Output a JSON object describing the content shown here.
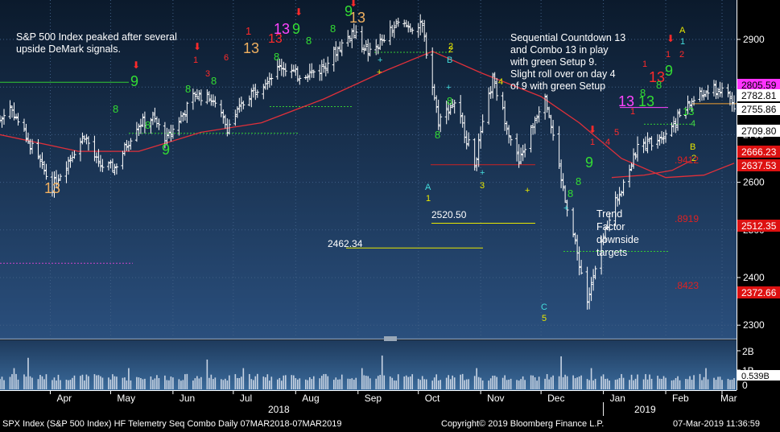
{
  "colors": {
    "background_top": "#0b1a2c",
    "background_bottom": "#2a4f7d",
    "price_bars": "#ffffff",
    "moving_average": "#e0303a",
    "buy_setup": "#33dd33",
    "sell_setup": "#ff2a2a",
    "countdown_13_sell": "#ff44ff",
    "countdown_13_tan": "#f0b060",
    "target_line": "#e8e800",
    "tdst_green": "#33cc33",
    "tdst_red": "#cc2222",
    "label_current": "#ffffff",
    "label_magenta": "#ff33ff",
    "label_red": "#dd1111"
  },
  "annotations": {
    "left_note": [
      "S&P 500 Index peaked after several",
      "upside DeMark signals."
    ],
    "right_note": [
      "Sequential Countdown 13",
      "and Combo 13 in play",
      "with green Setup 9.",
      "Slight roll over on day 4",
      "of 9 with green Setup"
    ],
    "trend_note": [
      "Trend",
      "Factor",
      "downside",
      "targets"
    ],
    "target_2520": "2520.50",
    "target_2462": "2462.34",
    "fib_8919": ".8919",
    "fib_8423": ".8423",
    "fib_9412": ".9412"
  },
  "markers": {
    "nine": "9",
    "thirteen": "13",
    "a": "A",
    "b": "B",
    "c": "C",
    "one": "1",
    "two": "2",
    "three": "3",
    "four": "4",
    "five": "5",
    "six": "6",
    "seven": "7",
    "eight": "8",
    "plus": "+",
    "arrow": "⬇"
  },
  "right_labels": {
    "p2805": "2805.59",
    "p2782": "2782.81",
    "p2755": "2755.86",
    "p2709": "2709.80",
    "p2666": "2666.23",
    "p2637": "2637.53",
    "p2512": "2512.35",
    "p2372": "2372.66"
  },
  "volume_labels": {
    "v2b": "2B",
    "v1b": "1B",
    "v0539": "0.539B",
    "v0": "0"
  },
  "footer": {
    "left": "SPX Index (S&P 500 Index) HF Telemetry Seq Combo  Daily 07MAR2018-07MAR2019",
    "center": "Copyright© 2019 Bloomberg Finance L.P.",
    "right": "07-Mar-2019 11:36:59"
  },
  "chart_data": {
    "type": "candlestick",
    "title": "",
    "x_axis": {
      "months": [
        "Apr",
        "May",
        "Jun",
        "Jul",
        "Aug",
        "Sep",
        "Oct",
        "Nov",
        "Dec",
        "Jan",
        "Feb",
        "Mar"
      ],
      "years": [
        "2018",
        "2019"
      ],
      "range": [
        "2018-03-07",
        "2019-03-07"
      ]
    },
    "y_axis": {
      "ticks": [
        2300,
        2400,
        2500,
        2600,
        2700,
        2800,
        2900
      ],
      "range": [
        2280,
        2960
      ],
      "scale": "linear"
    },
    "volume_axis": {
      "ticks": [
        "2B",
        "1B",
        "0"
      ]
    },
    "price_path": [
      [
        "2018-03-07",
        2730
      ],
      [
        "2018-03-12",
        2760
      ],
      [
        "2018-03-22",
        2680
      ],
      [
        "2018-04-02",
        2590
      ],
      [
        "2018-04-09",
        2640
      ],
      [
        "2018-04-18",
        2700
      ],
      [
        "2018-04-25",
        2635
      ],
      [
        "2018-05-03",
        2630
      ],
      [
        "2018-05-14",
        2720
      ],
      [
        "2018-05-22",
        2735
      ],
      [
        "2018-05-29",
        2690
      ],
      [
        "2018-06-12",
        2785
      ],
      [
        "2018-06-20",
        2775
      ],
      [
        "2018-06-28",
        2715
      ],
      [
        "2018-07-09",
        2785
      ],
      [
        "2018-07-25",
        2845
      ],
      [
        "2018-08-02",
        2825
      ],
      [
        "2018-08-13",
        2835
      ],
      [
        "2018-08-29",
        2915
      ],
      [
        "2018-09-07",
        2870
      ],
      [
        "2018-09-20",
        2930
      ],
      [
        "2018-10-03",
        2925
      ],
      [
        "2018-10-11",
        2730
      ],
      [
        "2018-10-19",
        2770
      ],
      [
        "2018-10-29",
        2640
      ],
      [
        "2018-11-07",
        2815
      ],
      [
        "2018-11-20",
        2640
      ],
      [
        "2018-12-03",
        2790
      ],
      [
        "2018-12-10",
        2630
      ],
      [
        "2018-12-24",
        2350
      ],
      [
        "2019-01-04",
        2530
      ],
      [
        "2019-01-18",
        2670
      ],
      [
        "2019-02-01",
        2705
      ],
      [
        "2019-02-15",
        2775
      ],
      [
        "2019-02-25",
        2795
      ],
      [
        "2019-03-04",
        2790
      ],
      [
        "2019-03-07",
        2750
      ]
    ],
    "moving_average_path": [
      [
        "2018-03-07",
        2700
      ],
      [
        "2018-04-15",
        2665
      ],
      [
        "2018-05-15",
        2665
      ],
      [
        "2018-06-15",
        2705
      ],
      [
        "2018-07-15",
        2725
      ],
      [
        "2018-08-15",
        2775
      ],
      [
        "2018-09-15",
        2835
      ],
      [
        "2018-10-08",
        2875
      ],
      [
        "2018-11-01",
        2830
      ],
      [
        "2018-12-01",
        2780
      ],
      [
        "2018-12-20",
        2725
      ],
      [
        "2019-01-10",
        2650
      ],
      [
        "2019-02-01",
        2610
      ],
      [
        "2019-02-20",
        2615
      ],
      [
        "2019-03-07",
        2640
      ]
    ],
    "current_price": 2755.86
  }
}
